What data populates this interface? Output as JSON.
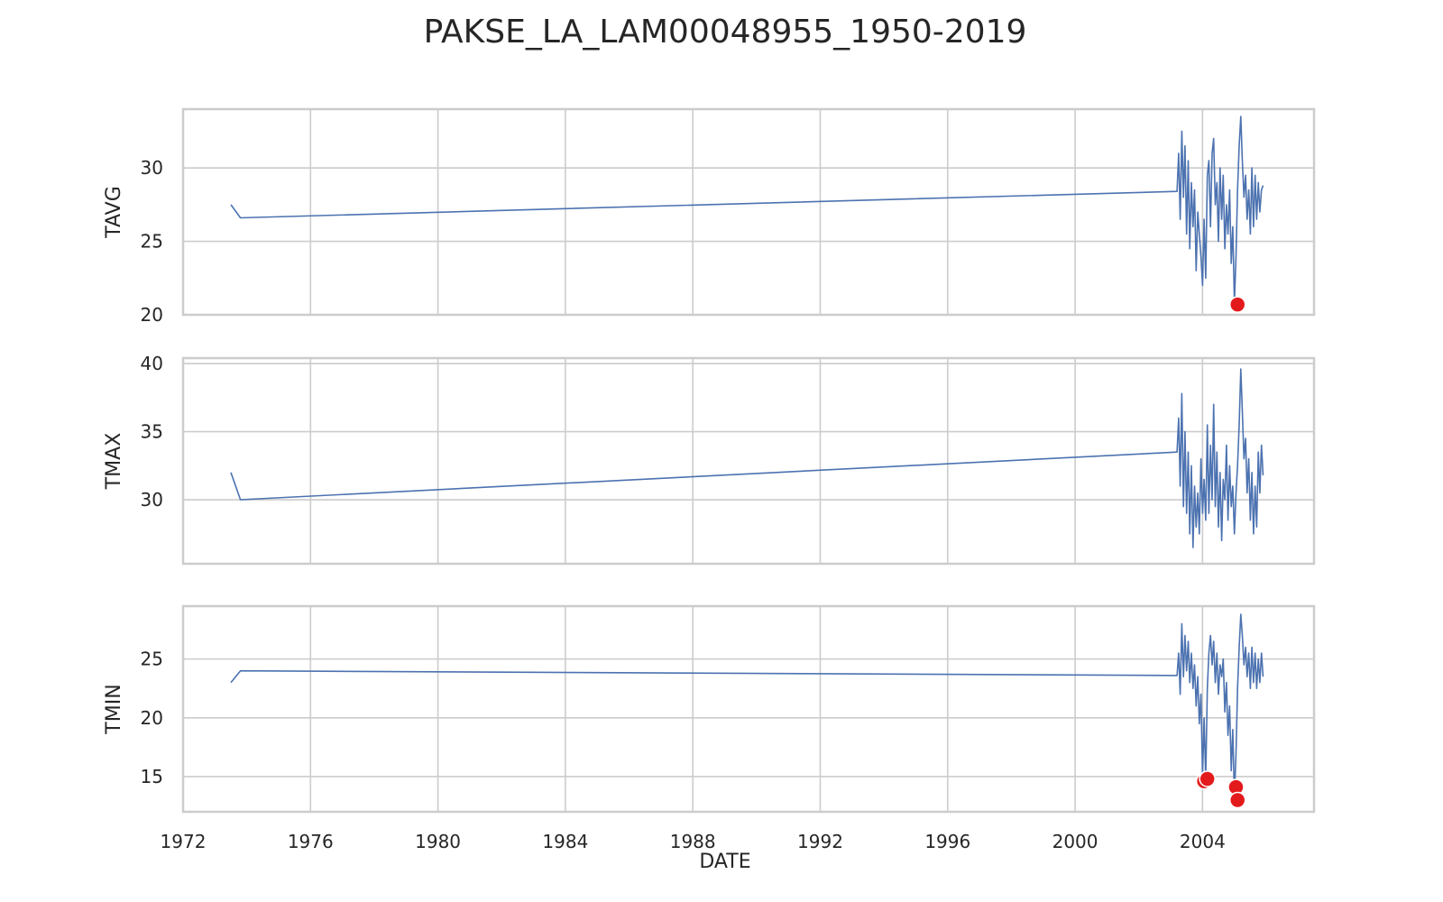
{
  "chart_data": {
    "type": "line",
    "title": "PAKSE_LA_LAM00048955_1950-2019",
    "xlabel": "DATE",
    "x_ticks": [
      "1972",
      "1976",
      "1980",
      "1984",
      "1988",
      "1992",
      "1996",
      "2000",
      "2004"
    ],
    "xlim": [
      1972,
      2007.5
    ],
    "grid": true,
    "line_color": "#4c72b0",
    "outlier_color": "#e31a1c",
    "panels": [
      {
        "ylabel": "TAVG",
        "ylim": [
          20,
          34
        ],
        "y_ticks": [
          20,
          25,
          30
        ],
        "series": [
          {
            "x": [
              1973.5,
              1973.8,
              2003.2,
              2003.25,
              2003.3,
              2003.35,
              2003.4,
              2003.45,
              2003.5,
              2003.55,
              2003.6,
              2003.65,
              2003.7,
              2003.75,
              2003.8,
              2003.85,
              2003.9,
              2003.95,
              2004.0,
              2004.05,
              2004.1,
              2004.15,
              2004.2,
              2004.25,
              2004.3,
              2004.35,
              2004.4,
              2004.45,
              2004.5,
              2004.55,
              2004.6,
              2004.65,
              2004.7,
              2004.75,
              2004.8,
              2004.85,
              2004.9,
              2004.95,
              2005.0,
              2005.05,
              2005.1,
              2005.15,
              2005.2,
              2005.25,
              2005.3,
              2005.35,
              2005.4,
              2005.45,
              2005.5,
              2005.55,
              2005.6,
              2005.65,
              2005.7,
              2005.75,
              2005.8,
              2005.85,
              2005.9
            ],
            "y": [
              27.5,
              26.6,
              28.4,
              31.0,
              26.5,
              32.5,
              28.0,
              31.5,
              25.5,
              30.5,
              24.5,
              29.0,
              26.0,
              28.5,
              23.0,
              27.0,
              25.5,
              24.0,
              22.0,
              26.5,
              22.5,
              29.5,
              30.5,
              26.0,
              31.0,
              32.0,
              27.5,
              29.0,
              25.0,
              30.0,
              26.5,
              29.5,
              24.5,
              27.5,
              25.5,
              28.5,
              23.5,
              26.0,
              20.8,
              24.0,
              28.5,
              31.5,
              33.5,
              30.5,
              28.0,
              29.5,
              26.5,
              28.5,
              25.5,
              30.0,
              26.0,
              29.5,
              26.5,
              29.0,
              27.0,
              28.5,
              28.8
            ]
          }
        ],
        "outliers": [
          {
            "x": 2005.1,
            "y": 20.7
          }
        ]
      },
      {
        "ylabel": "TMAX",
        "ylim": [
          25.3,
          40.4
        ],
        "y_ticks": [
          30,
          35,
          40
        ],
        "series": [
          {
            "x": [
              1973.5,
              1973.8,
              2003.2,
              2003.25,
              2003.3,
              2003.35,
              2003.4,
              2003.45,
              2003.5,
              2003.55,
              2003.6,
              2003.65,
              2003.7,
              2003.75,
              2003.8,
              2003.85,
              2003.9,
              2003.95,
              2004.0,
              2004.05,
              2004.1,
              2004.15,
              2004.2,
              2004.25,
              2004.3,
              2004.35,
              2004.4,
              2004.45,
              2004.5,
              2004.55,
              2004.6,
              2004.65,
              2004.7,
              2004.75,
              2004.8,
              2004.85,
              2004.9,
              2004.95,
              2005.0,
              2005.05,
              2005.1,
              2005.15,
              2005.2,
              2005.25,
              2005.3,
              2005.35,
              2005.4,
              2005.45,
              2005.5,
              2005.55,
              2005.6,
              2005.65,
              2005.7,
              2005.75,
              2005.8,
              2005.85,
              2005.9
            ],
            "y": [
              32.0,
              30.0,
              33.5,
              36.0,
              31.0,
              37.8,
              29.5,
              35.0,
              29.0,
              33.5,
              27.5,
              32.5,
              26.5,
              31.0,
              28.0,
              30.5,
              27.5,
              33.0,
              29.0,
              31.5,
              28.5,
              35.5,
              29.0,
              34.0,
              30.0,
              37.0,
              29.5,
              33.5,
              28.0,
              32.0,
              27.0,
              31.5,
              30.0,
              34.0,
              28.5,
              32.5,
              29.5,
              31.0,
              27.5,
              30.5,
              32.5,
              35.5,
              39.6,
              36.5,
              33.0,
              34.5,
              30.5,
              33.0,
              28.5,
              32.0,
              27.5,
              31.0,
              28.0,
              33.5,
              30.5,
              34.0,
              31.8
            ]
          }
        ],
        "outliers": []
      },
      {
        "ylabel": "TMIN",
        "ylim": [
          12,
          29.5
        ],
        "y_ticks": [
          15,
          20,
          25
        ],
        "series": [
          {
            "x": [
              1973.5,
              1973.8,
              2003.2,
              2003.25,
              2003.3,
              2003.35,
              2003.4,
              2003.45,
              2003.5,
              2003.55,
              2003.6,
              2003.65,
              2003.7,
              2003.75,
              2003.8,
              2003.85,
              2003.9,
              2003.95,
              2004.0,
              2004.05,
              2004.1,
              2004.15,
              2004.2,
              2004.25,
              2004.3,
              2004.35,
              2004.4,
              2004.45,
              2004.5,
              2004.55,
              2004.6,
              2004.65,
              2004.7,
              2004.75,
              2004.8,
              2004.85,
              2004.9,
              2004.95,
              2005.0,
              2005.05,
              2005.1,
              2005.15,
              2005.2,
              2005.25,
              2005.3,
              2005.35,
              2005.4,
              2005.45,
              2005.5,
              2005.55,
              2005.6,
              2005.65,
              2005.7,
              2005.75,
              2005.8,
              2005.85,
              2005.9
            ],
            "y": [
              23.0,
              24.0,
              23.6,
              25.5,
              22.0,
              28.0,
              23.5,
              27.0,
              24.0,
              26.5,
              23.0,
              25.5,
              22.5,
              24.5,
              21.0,
              23.5,
              19.5,
              22.0,
              15.0,
              20.0,
              14.8,
              22.5,
              25.5,
              27.0,
              24.5,
              26.5,
              23.0,
              25.5,
              22.0,
              24.5,
              23.5,
              25.0,
              20.5,
              23.0,
              18.5,
              21.0,
              15.5,
              19.0,
              13.2,
              17.0,
              22.5,
              26.0,
              28.8,
              27.0,
              24.5,
              26.0,
              23.5,
              25.5,
              22.5,
              26.0,
              23.0,
              25.5,
              22.5,
              25.0,
              23.0,
              25.5,
              23.5
            ]
          }
        ],
        "outliers": [
          {
            "x": 2004.05,
            "y": 14.6
          },
          {
            "x": 2004.15,
            "y": 14.8
          },
          {
            "x": 2005.05,
            "y": 14.1
          },
          {
            "x": 2005.1,
            "y": 13.0
          }
        ]
      }
    ]
  }
}
